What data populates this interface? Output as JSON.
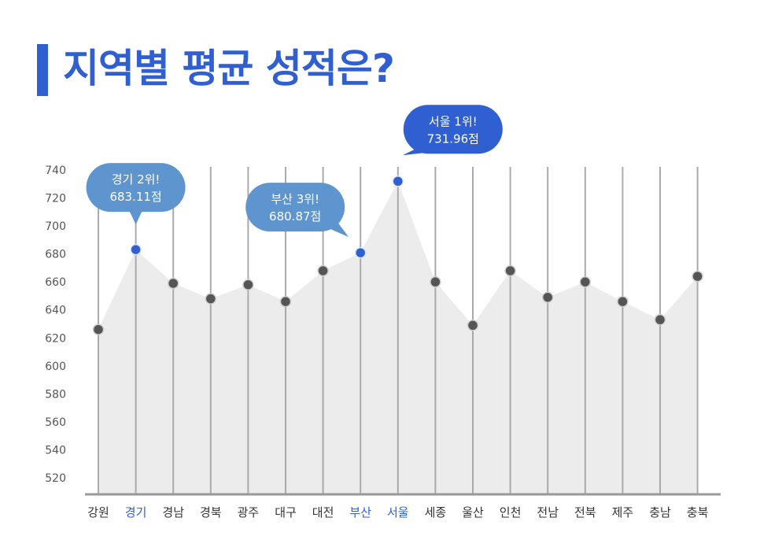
{
  "page": {
    "title": "지역별 평균 성적은?"
  },
  "colors": {
    "accent": "#2f5fd0",
    "callout": "#5f95cf",
    "callout_dark": "#2f5fd0",
    "area": "#ececec",
    "marker": "#555555",
    "axis": "#999999"
  },
  "chart_data": {
    "type": "area",
    "title": "지역별 평균 성적은?",
    "xlabel": "",
    "ylabel": "",
    "ylim": [
      515,
      745
    ],
    "yticks": [
      520,
      540,
      560,
      580,
      600,
      620,
      640,
      660,
      680,
      700,
      720,
      740
    ],
    "categories": [
      "강원",
      "경기",
      "경남",
      "경북",
      "광주",
      "대구",
      "대전",
      "부산",
      "서울",
      "세종",
      "울산",
      "인천",
      "전남",
      "전북",
      "제주",
      "충남",
      "충북"
    ],
    "values": [
      626,
      683.11,
      659,
      648,
      658,
      646,
      668,
      680.87,
      731.96,
      660,
      629,
      668,
      649,
      660,
      646,
      633,
      664
    ],
    "highlighted": [
      "경기",
      "부산",
      "서울"
    ],
    "annotations": [
      {
        "category": "서울",
        "line1": "서울 1위!",
        "line2": "731.96점",
        "style": "dark"
      },
      {
        "category": "경기",
        "line1": "경기 2위!",
        "line2": "683.11점",
        "style": "light"
      },
      {
        "category": "부산",
        "line1": "부산 3위!",
        "line2": "680.87점",
        "style": "light"
      }
    ]
  }
}
